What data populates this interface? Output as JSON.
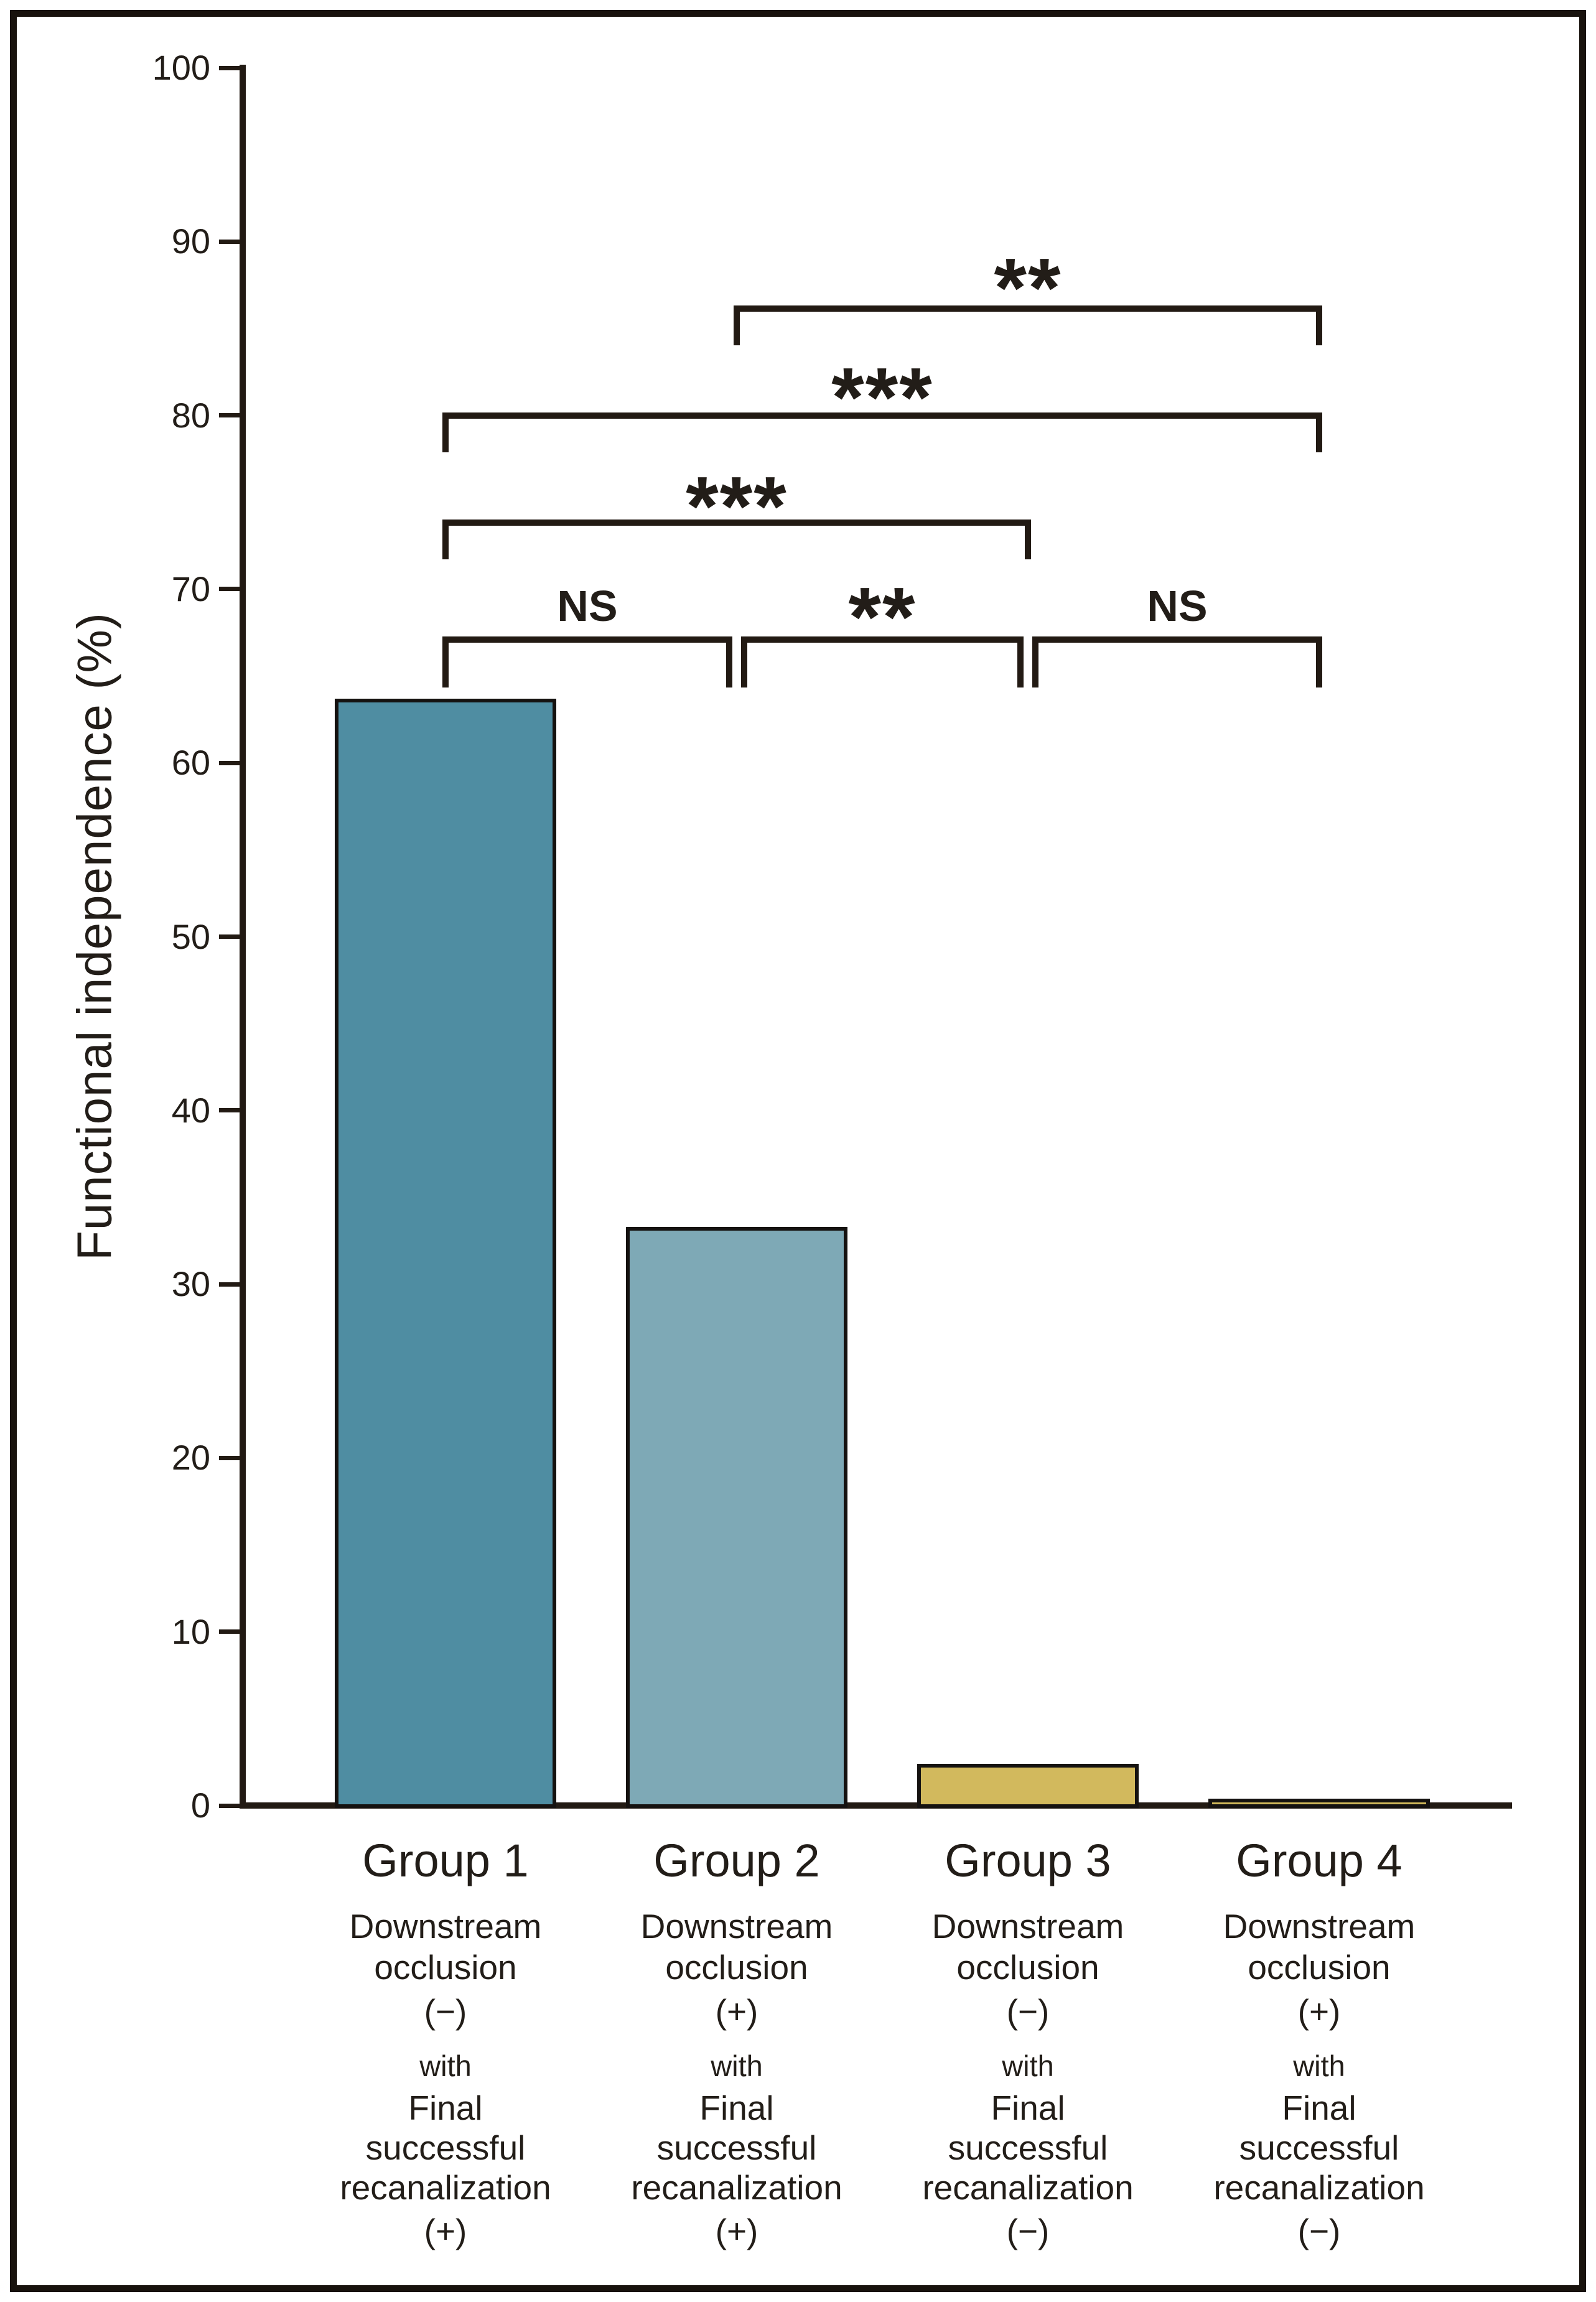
{
  "chart_data": {
    "type": "bar",
    "title": "",
    "ylabel": "Functional independence (%)",
    "xlabel": "",
    "ylim": [
      0,
      100
    ],
    "yticks": [
      0,
      10,
      20,
      30,
      40,
      50,
      60,
      70,
      80,
      90,
      100
    ],
    "grid": false,
    "legend": null,
    "categories": [
      "Group 1",
      "Group 2",
      "Group 3",
      "Group 4"
    ],
    "values": [
      63.7,
      33.3,
      2.4,
      0.4
    ],
    "bar_colors": [
      "#4f8da2",
      "#7ea9b6",
      "#d2b95d",
      "#cfb75a"
    ],
    "group_sublabels": [
      {
        "lines": [
          "Downstream",
          "occlusion",
          "(−)"
        ],
        "connector": "with",
        "lines2": [
          "Final",
          "successful",
          "recanalization",
          "(+)"
        ]
      },
      {
        "lines": [
          "Downstream",
          "occlusion",
          "(+)"
        ],
        "connector": "with",
        "lines2": [
          "Final",
          "successful",
          "recanalization",
          "(+)"
        ]
      },
      {
        "lines": [
          "Downstream",
          "occlusion",
          "(−)"
        ],
        "connector": "with",
        "lines2": [
          "Final",
          "successful",
          "recanalization",
          "(−)"
        ]
      },
      {
        "lines": [
          "Downstream",
          "occlusion",
          "(+)"
        ],
        "connector": "with",
        "lines2": [
          "Final",
          "successful",
          "recanalization",
          "(−)"
        ]
      }
    ],
    "significance": [
      {
        "groups": [
          2,
          4
        ],
        "label": "**",
        "row": 1
      },
      {
        "groups": [
          1,
          4
        ],
        "label": "***",
        "row": 2
      },
      {
        "groups": [
          1,
          3
        ],
        "label": "***",
        "row": 3
      },
      {
        "groups": [
          1,
          2
        ],
        "label": "NS",
        "row": 4
      },
      {
        "groups": [
          2,
          3
        ],
        "label": "**",
        "row": 4
      },
      {
        "groups": [
          3,
          4
        ],
        "label": "NS",
        "row": 4
      }
    ],
    "colors": {
      "ink": "#221a13",
      "text": "#221d18",
      "background": "#ffffff"
    }
  }
}
